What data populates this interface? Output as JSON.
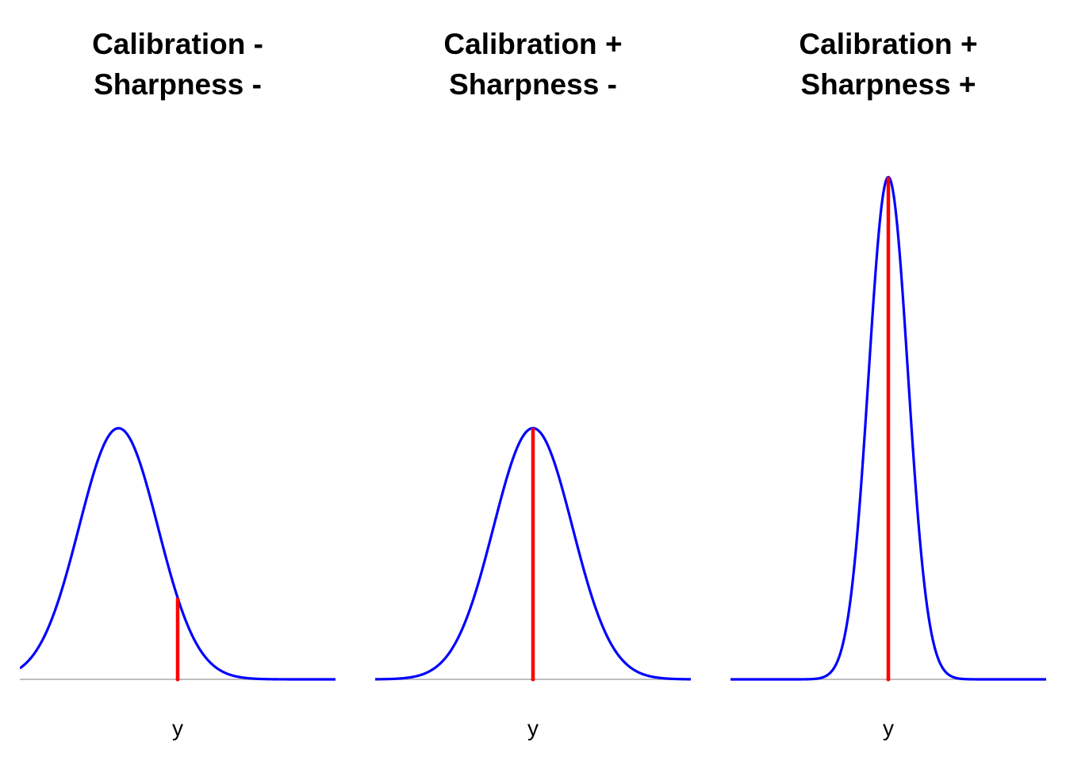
{
  "chart_data": [
    {
      "type": "line",
      "title_lines": [
        "Calibration -",
        "Sharpness -"
      ],
      "xlabel": "y",
      "ylabel": "",
      "x_range": [
        -4,
        4
      ],
      "density": {
        "mean": -1.5,
        "sd": 1.0
      },
      "observation": 0.0,
      "ylim": [
        0,
        0.85
      ],
      "grid": false,
      "colors": {
        "density": "#0000ff",
        "observation": "#ff0000",
        "baseline": "#bebebe"
      }
    },
    {
      "type": "line",
      "title_lines": [
        "Calibration +",
        "Sharpness -"
      ],
      "xlabel": "y",
      "ylabel": "",
      "x_range": [
        -4,
        4
      ],
      "density": {
        "mean": 0.0,
        "sd": 1.0
      },
      "observation": 0.0,
      "ylim": [
        0,
        0.85
      ],
      "grid": false,
      "colors": {
        "density": "#0000ff",
        "observation": "#ff0000",
        "baseline": "#bebebe"
      }
    },
    {
      "type": "line",
      "title_lines": [
        "Calibration +",
        "Sharpness +"
      ],
      "xlabel": "y",
      "ylabel": "",
      "x_range": [
        -4,
        4
      ],
      "density": {
        "mean": 0.0,
        "sd": 0.5
      },
      "observation": 0.0,
      "ylim": [
        0,
        0.85
      ],
      "grid": false,
      "colors": {
        "density": "#0000ff",
        "observation": "#ff0000",
        "baseline": "#bebebe"
      }
    }
  ]
}
